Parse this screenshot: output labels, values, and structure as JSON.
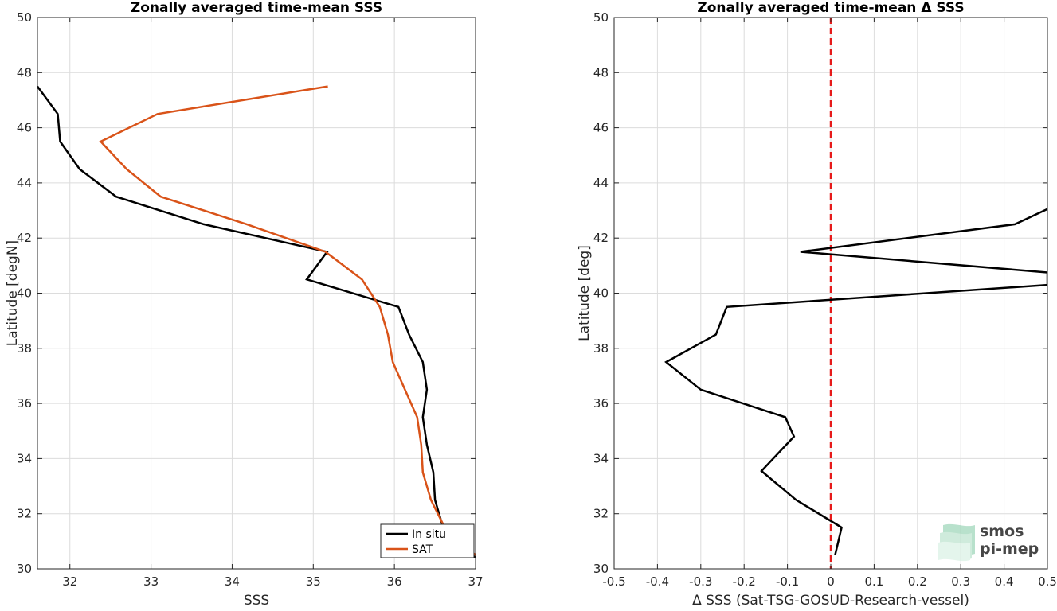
{
  "chart_data": [
    {
      "type": "line",
      "title": "Zonally averaged time-mean SSS",
      "xlabel": "SSS",
      "ylabel": "Latitude [degN]",
      "xlim": [
        31.6,
        37
      ],
      "ylim": [
        30,
        50
      ],
      "xticks": [
        32,
        33,
        34,
        35,
        36,
        37
      ],
      "yticks": [
        30,
        32,
        34,
        36,
        38,
        40,
        42,
        44,
        46,
        48,
        50
      ],
      "grid": true,
      "legend_position": "bottom-right",
      "series": [
        {
          "name": "In situ",
          "color": "#000000",
          "points": [
            [
              31.6,
              47.5
            ],
            [
              31.85,
              46.5
            ],
            [
              31.88,
              45.5
            ],
            [
              32.12,
              44.5
            ],
            [
              32.57,
              43.5
            ],
            [
              33.65,
              42.5
            ],
            [
              35.17,
              41.5
            ],
            [
              34.92,
              40.5
            ],
            [
              36.05,
              39.5
            ],
            [
              36.18,
              38.5
            ],
            [
              36.35,
              37.5
            ],
            [
              36.4,
              36.5
            ],
            [
              36.35,
              35.5
            ],
            [
              36.4,
              34.5
            ],
            [
              36.48,
              33.5
            ],
            [
              36.5,
              32.5
            ],
            [
              36.6,
              31.5
            ],
            [
              37.0,
              30.4
            ]
          ]
        },
        {
          "name": "SAT",
          "color": "#d95319",
          "points": [
            [
              35.18,
              47.5
            ],
            [
              33.08,
              46.5
            ],
            [
              32.38,
              45.5
            ],
            [
              32.7,
              44.5
            ],
            [
              33.12,
              43.5
            ],
            [
              34.18,
              42.5
            ],
            [
              35.15,
              41.5
            ],
            [
              35.6,
              40.5
            ],
            [
              35.82,
              39.5
            ],
            [
              35.92,
              38.5
            ],
            [
              35.98,
              37.5
            ],
            [
              36.28,
              35.5
            ],
            [
              36.33,
              34.5
            ],
            [
              36.35,
              33.5
            ],
            [
              36.45,
              32.5
            ],
            [
              36.62,
              31.5
            ],
            [
              37.0,
              30.5
            ]
          ]
        }
      ]
    },
    {
      "type": "line",
      "title": "Zonally averaged time-mean Δ SSS",
      "xlabel": "Δ SSS (Sat-TSG-GOSUD-Research-vessel)",
      "ylabel": "Latitude [deg]",
      "xlim": [
        -0.5,
        0.5
      ],
      "ylim": [
        30,
        50
      ],
      "xticks": [
        -0.5,
        -0.4,
        -0.3,
        -0.2,
        -0.1,
        0,
        0.1,
        0.2,
        0.3,
        0.4,
        0.5
      ],
      "yticks": [
        30,
        32,
        34,
        36,
        38,
        40,
        42,
        44,
        46,
        48,
        50
      ],
      "grid": true,
      "zero_line": {
        "x": 0,
        "color": "#e61a1a",
        "style": "dashed"
      },
      "series": [
        {
          "color": "#000000",
          "points": [
            [
              0.5,
              43.05
            ],
            [
              0.425,
              42.5
            ],
            [
              -0.07,
              41.5
            ],
            [
              0.5,
              40.75
            ],
            [
              0.5,
              40.3
            ],
            [
              -0.24,
              39.5
            ],
            [
              -0.265,
              38.5
            ],
            [
              -0.38,
              37.5
            ],
            [
              -0.3,
              36.5
            ],
            [
              -0.105,
              35.5
            ],
            [
              -0.085,
              34.8
            ],
            [
              -0.16,
              33.55
            ],
            [
              -0.08,
              32.5
            ],
            [
              0.025,
              31.5
            ],
            [
              0.01,
              30.5
            ]
          ]
        }
      ]
    }
  ],
  "watermark": {
    "line1": "smos",
    "line2": "pi-mep"
  }
}
